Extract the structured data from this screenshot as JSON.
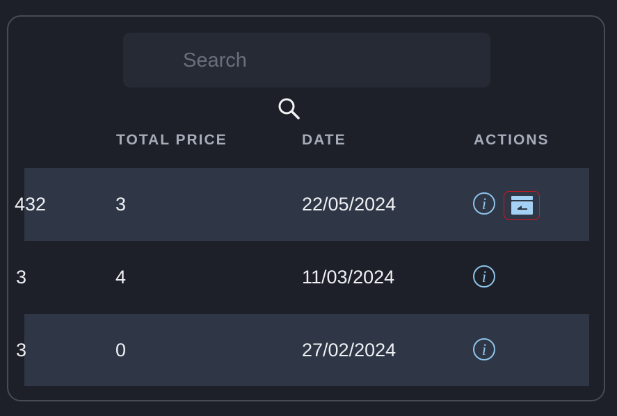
{
  "search": {
    "placeholder": "Search",
    "value": ""
  },
  "table": {
    "headers": [
      "TOTAL PRICE",
      "DATE",
      "ACTIONS"
    ],
    "rows": [
      {
        "id": "432",
        "total_price": "3",
        "date": "22/05/2024",
        "actions": [
          "info-icon",
          "archive-icon"
        ]
      },
      {
        "id": "3",
        "total_price": "4",
        "date": "11/03/2024",
        "actions": [
          "info-icon"
        ]
      },
      {
        "id": "3",
        "total_price": "0",
        "date": "27/02/2024",
        "actions": [
          "info-icon"
        ]
      }
    ]
  },
  "colors": {
    "accent": "#8fc4ea",
    "focus_outline": "#e0141e",
    "row_alt": "#2f3646"
  }
}
